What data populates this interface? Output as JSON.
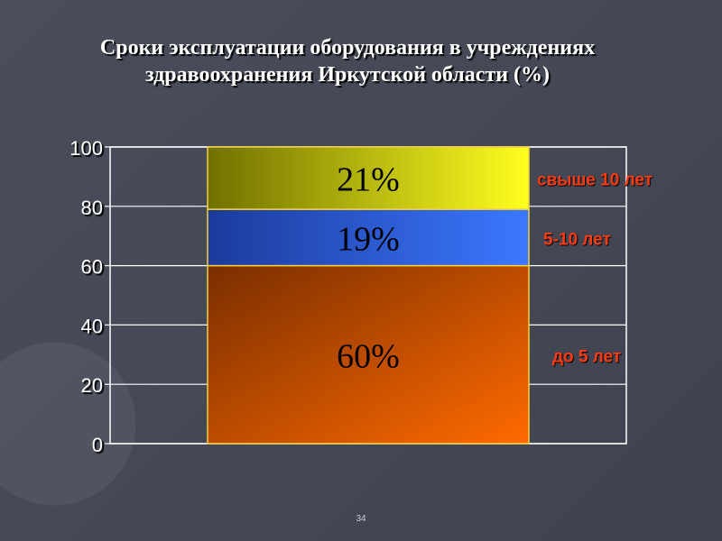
{
  "title": {
    "line1": "Сроки эксплуатации оборудования в учреждениях",
    "line2": "здравоохранения Иркутской области (%)"
  },
  "chart_data": {
    "type": "bar",
    "stacked": true,
    "categories": [
      ""
    ],
    "series": [
      {
        "name": "до 5 лет",
        "values": [
          60
        ],
        "label": "60%",
        "color": "#e0580a"
      },
      {
        "name": "5-10 лет",
        "values": [
          19
        ],
        "label": "19%",
        "color": "#2a5ce8"
      },
      {
        "name": "свыше 10 лет",
        "values": [
          21
        ],
        "label": "21%",
        "color": "#d8d820"
      }
    ],
    "ylim": [
      0,
      100
    ],
    "yticks": [
      0,
      20,
      40,
      60,
      80,
      100
    ],
    "grid": true,
    "legend": "right",
    "label_color": "#ff3a10"
  },
  "page_number": "34"
}
